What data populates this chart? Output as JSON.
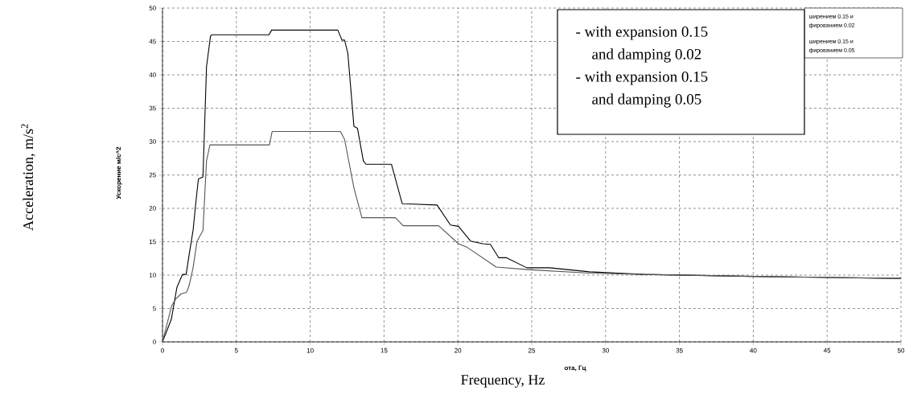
{
  "chart_data": {
    "type": "line",
    "xlabel": "Frequency, Hz",
    "ylabel": "Ускорение м/с^2",
    "xlim": [
      0,
      50
    ],
    "xticks": [
      0,
      5,
      10,
      15,
      20,
      25,
      30,
      35,
      40,
      45,
      50
    ],
    "ylim": [
      0,
      50
    ],
    "yticks": [
      0,
      5,
      10,
      15,
      20,
      25,
      30,
      35,
      40,
      45,
      50
    ],
    "grid": true,
    "marker": "none",
    "line_style": "solid",
    "series": [
      {
        "color": "#000000",
        "x": [
          0,
          0.6,
          0.98,
          1.35,
          1.6,
          1.8,
          2.07,
          2.25,
          2.43,
          2.74,
          2.98,
          3.25,
          3.34,
          7.21,
          7.39,
          11.87,
          12.15,
          12.33,
          12.55,
          12.96,
          13.2,
          13.6,
          13.78,
          15.5,
          16.23,
          18.59,
          19.5,
          20.04,
          20.86,
          21.68,
          22.2,
          22.77,
          23.3,
          24.67,
          26.2,
          28.9,
          32.6,
          40,
          50
        ],
        "values": [
          0,
          3.4,
          8.2,
          10.1,
          10.1,
          13.0,
          16.7,
          20.7,
          24.4,
          24.7,
          41.2,
          45.8,
          46.0,
          46.0,
          46.7,
          46.7,
          45.2,
          45.2,
          43.2,
          32.3,
          32.0,
          27.1,
          26.6,
          26.6,
          20.7,
          20.5,
          17.5,
          17.3,
          15.1,
          14.7,
          14.6,
          12.6,
          12.6,
          11.1,
          11.1,
          10.5,
          10.1,
          9.8,
          9.5
        ]
      },
      {
        "color": "#555555",
        "x": [
          0,
          0.62,
          0.89,
          1.25,
          1.62,
          1.8,
          2.07,
          2.34,
          2.74,
          2.98,
          3.21,
          7.24,
          7.42,
          12.05,
          12.33,
          12.96,
          13.5,
          15.77,
          16.3,
          18.7,
          20.04,
          20.6,
          22.6,
          24.9,
          28.9,
          32.6,
          40,
          50
        ],
        "values": [
          0,
          5.4,
          6.4,
          7.2,
          7.4,
          8.4,
          11.1,
          15.1,
          16.7,
          27.1,
          29.5,
          29.5,
          31.5,
          31.5,
          30.3,
          23.1,
          18.6,
          18.6,
          17.4,
          17.4,
          14.7,
          14.2,
          11.2,
          10.8,
          10.3,
          10.1,
          9.8,
          9.5
        ]
      }
    ],
    "annotations": [
      "Acceleration, m/s$^{2}$",
      "ота, Гц",
      "ширением 0.15 и",
      "фированием 0.02",
      "ширением 0.15 и",
      "фированием 0.05",
      "- with expansion 0.15",
      "and damping 0.02",
      "- with expansion 0.15",
      "and damping 0.05"
    ]
  }
}
